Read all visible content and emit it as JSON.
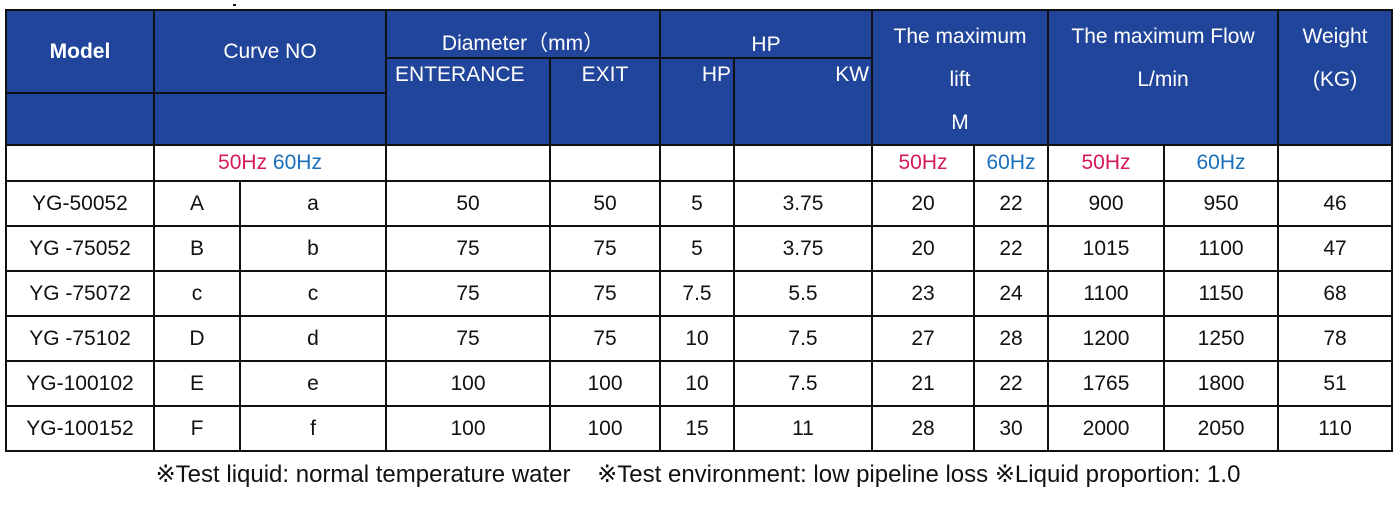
{
  "header": {
    "model": "Model",
    "curve_no": "Curve NO",
    "diameter": "Diameter（mm）",
    "entrance": "ENTERANCE",
    "exit": "EXIT",
    "hp_group": "HP",
    "hp": "HP",
    "kw": "KW",
    "lift_line1": "The maximum",
    "lift_line2": "lift",
    "lift_line3": "M",
    "flow_line1": "The maximum Flow",
    "flow_line2": "L/min",
    "weight_line1": "Weight",
    "weight_line2": "(KG)"
  },
  "freq": {
    "hz50": "50Hz",
    "hz60": "60Hz"
  },
  "rows": [
    {
      "model": "YG-50052",
      "curve50": "A",
      "curve60": "a",
      "entrance": "50",
      "exit": "50",
      "hp": "5",
      "kw": "3.75",
      "lift50": "20",
      "lift60": "22",
      "flow50": "900",
      "flow60": "950",
      "weight": "46"
    },
    {
      "model": "YG -75052",
      "curve50": "B",
      "curve60": "b",
      "entrance": "75",
      "exit": "75",
      "hp": "5",
      "kw": "3.75",
      "lift50": "20",
      "lift60": "22",
      "flow50": "1015",
      "flow60": "1100",
      "weight": "47"
    },
    {
      "model": "YG -75072",
      "curve50": "c",
      "curve60": "c",
      "entrance": "75",
      "exit": "75",
      "hp": "7.5",
      "kw": "5.5",
      "lift50": "23",
      "lift60": "24",
      "flow50": "1100",
      "flow60": "1150",
      "weight": "68"
    },
    {
      "model": "YG -75102",
      "curve50": "D",
      "curve60": "d",
      "entrance": "75",
      "exit": "75",
      "hp": "10",
      "kw": "7.5",
      "lift50": "27",
      "lift60": "28",
      "flow50": "1200",
      "flow60": "1250",
      "weight": "78"
    },
    {
      "model": "YG-100102",
      "curve50": "E",
      "curve60": "e",
      "entrance": "100",
      "exit": "100",
      "hp": "10",
      "kw": "7.5",
      "lift50": "21",
      "lift60": "22",
      "flow50": "1765",
      "flow60": "1800",
      "weight": "51"
    },
    {
      "model": "YG-100152",
      "curve50": "F",
      "curve60": "f",
      "entrance": "100",
      "exit": "100",
      "hp": "15",
      "kw": "11",
      "lift50": "28",
      "lift60": "30",
      "flow50": "2000",
      "flow60": "2050",
      "weight": "110"
    }
  ],
  "footnote": "※Test liquid: normal temperature water    ※Test environment: low pipeline loss ※Liquid proportion: 1.0",
  "colors": {
    "header_bg": "#21459a",
    "hz50": "#d4195b",
    "hz60": "#1a6fbd"
  }
}
